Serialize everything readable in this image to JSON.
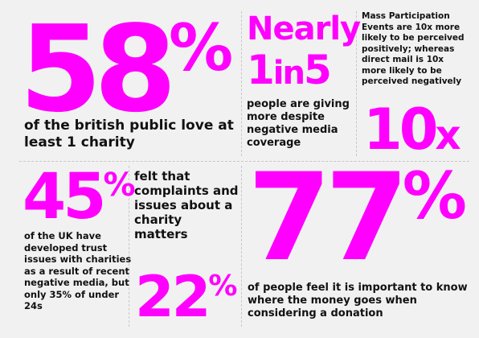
{
  "accent_color": "#ff00ff",
  "stat_58": {
    "number": "58",
    "suffix": "%",
    "caption": "of the british public love at least 1 charity"
  },
  "stat_1in5": {
    "lead": "Nearly",
    "number_1": "1",
    "middle": "in",
    "number_2": "5",
    "caption": "people are giving more despite negative media coverage"
  },
  "stat_10x": {
    "caption": "Mass Participation Events are 10x more likely to be perceived positively; whereas direct mail is 10x more likely to be perceived negatively",
    "number": "10",
    "suffix": "x"
  },
  "stat_45": {
    "number": "45",
    "suffix": "%",
    "caption": "of the UK have developed trust issues with charities as a result of recent negative media, but only 35% of under 24s"
  },
  "stat_22": {
    "caption": "felt that complaints and issues about a charity matters",
    "number": "22",
    "suffix": "%"
  },
  "stat_77": {
    "number": "77",
    "suffix": "%",
    "caption": "of people feel it is important to know where the money goes when considering a donation"
  }
}
